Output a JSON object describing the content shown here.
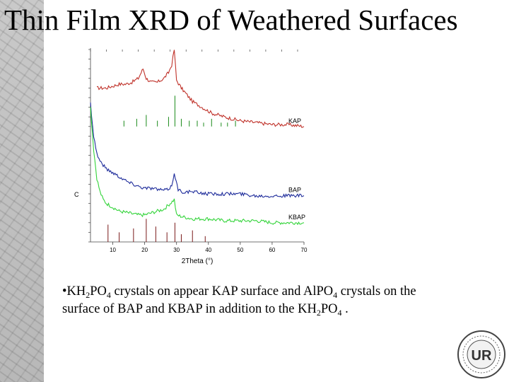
{
  "slide": {
    "title": "Thin Film XRD of Weathered Surfaces",
    "bullet": {
      "marker": "•",
      "parts": [
        "KH",
        "2",
        "PO",
        "4",
        " crystals on appear KAP surface and AlPO",
        "4",
        " crystals on the surface of BAP and KBAP in addition to the KH",
        "2",
        "PO",
        "4",
        " ."
      ]
    },
    "seal_text": "UR"
  },
  "chart_data": {
    "type": "line",
    "xlabel": "2Theta (°)",
    "ylabel": "",
    "xlim": [
      3,
      70
    ],
    "x_ticks": [
      10,
      20,
      30,
      40,
      50,
      60,
      70
    ],
    "tick_labels": [
      "10",
      "20",
      "30",
      "40",
      "50",
      "60",
      "70"
    ],
    "y_axis_label_fragment": "C",
    "grid": false,
    "series": [
      {
        "name": "KAP",
        "color": "#c0332b",
        "x": [
          5,
          8,
          10,
          12,
          14,
          16,
          18,
          19.5,
          20.5,
          22,
          24,
          26,
          27.5,
          28.5,
          29.3,
          30,
          31.5,
          33,
          35,
          38,
          41,
          45,
          50,
          55,
          60,
          65,
          70
        ],
        "y": [
          0.8,
          0.8,
          0.81,
          0.82,
          0.82,
          0.83,
          0.85,
          0.9,
          0.85,
          0.83,
          0.83,
          0.85,
          0.88,
          0.92,
          1.0,
          0.84,
          0.8,
          0.77,
          0.73,
          0.7,
          0.67,
          0.65,
          0.63,
          0.62,
          0.61,
          0.61,
          0.6
        ]
      },
      {
        "name": "BAP",
        "color": "#1c2a9a",
        "x": [
          3,
          4,
          5,
          6,
          7,
          8,
          10,
          12,
          15,
          18,
          20,
          22,
          25,
          27,
          28.5,
          29.3,
          30.5,
          32,
          35,
          40,
          45,
          50,
          55,
          60,
          65,
          70
        ],
        "y": [
          0.72,
          0.55,
          0.46,
          0.42,
          0.4,
          0.38,
          0.36,
          0.34,
          0.31,
          0.29,
          0.28,
          0.28,
          0.27,
          0.27,
          0.29,
          0.36,
          0.27,
          0.26,
          0.26,
          0.25,
          0.25,
          0.25,
          0.24,
          0.24,
          0.24,
          0.24
        ]
      },
      {
        "name": "KBAP",
        "color": "#33d43a",
        "x": [
          3,
          4,
          5,
          6,
          7,
          8,
          10,
          12,
          15,
          18,
          20,
          22,
          24,
          26,
          28,
          29.3,
          30,
          32,
          35,
          40,
          45,
          50,
          55,
          60,
          65,
          70
        ],
        "y": [
          0.7,
          0.48,
          0.33,
          0.26,
          0.22,
          0.2,
          0.18,
          0.16,
          0.15,
          0.14,
          0.14,
          0.15,
          0.16,
          0.17,
          0.2,
          0.22,
          0.14,
          0.13,
          0.12,
          0.12,
          0.11,
          0.11,
          0.11,
          0.1,
          0.1,
          0.1
        ]
      }
    ],
    "reference_peaks": {
      "KAP": {
        "color": "#1a8a1a",
        "x": [
          13.5,
          17.5,
          20.5,
          24,
          27.5,
          29.5,
          31.5,
          34,
          36.5,
          38.5,
          41,
          44,
          46,
          48.5
        ],
        "h": [
          0.03,
          0.04,
          0.06,
          0.03,
          0.05,
          0.16,
          0.04,
          0.03,
          0.03,
          0.02,
          0.04,
          0.02,
          0.02,
          0.03
        ]
      },
      "BAP": {
        "color": "#7a1a1a",
        "x": [
          8.5,
          12,
          16.5,
          20.5,
          23.5,
          27,
          29.5,
          31.5,
          35,
          39
        ],
        "h": [
          0.09,
          0.05,
          0.07,
          0.12,
          0.08,
          0.05,
          0.1,
          0.04,
          0.06,
          0.03
        ]
      }
    }
  }
}
